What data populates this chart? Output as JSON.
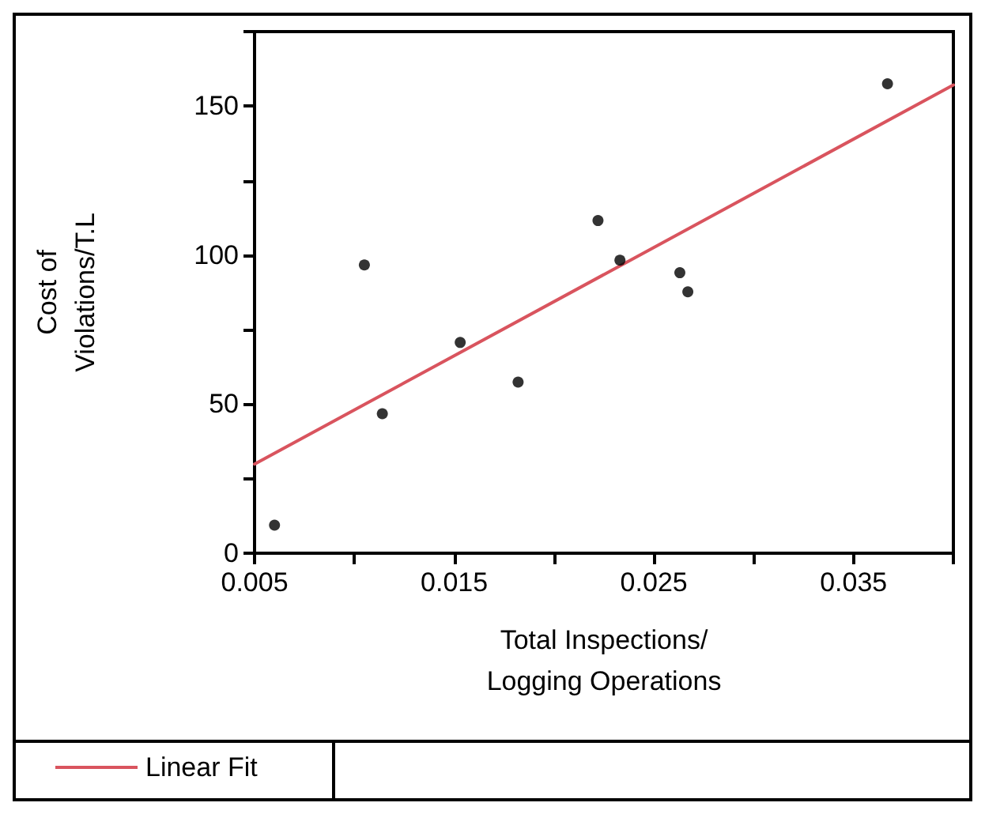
{
  "chart_data": {
    "type": "scatter",
    "xlabel": "Total Inspections/\nLogging Operations",
    "ylabel": "Cost of\nViolations/T.L",
    "x": [
      0.006,
      0.0105,
      0.0114,
      0.0153,
      0.0182,
      0.0222,
      0.0233,
      0.0263,
      0.0267,
      0.0367
    ],
    "series": [
      {
        "color": "#000000",
        "marker": "circle",
        "values": [
          9.4,
          96.7,
          46.8,
          70.7,
          57.4,
          111.6,
          98.3,
          94.1,
          87.7,
          157.5
        ]
      },
      {
        "type": "line",
        "name": "Linear Fit",
        "color": "#d9545e",
        "marker": "none",
        "line_style": "solid",
        "x": [
          0.005,
          0.04
        ],
        "values": [
          29.9,
          157.1
        ]
      }
    ],
    "xlim": [
      0.005,
      0.04
    ],
    "xticks": [
      0.005,
      {
        "value": 0.01,
        "label": null
      },
      0.015,
      {
        "value": 0.02,
        "label": null
      },
      0.025,
      {
        "value": 0.03,
        "label": null
      },
      0.035,
      {
        "value": 0.04,
        "label": null
      }
    ],
    "ylim": [
      0,
      175
    ],
    "yticks": [
      0,
      {
        "value": 25,
        "label": null
      },
      50,
      {
        "value": 75,
        "label": null
      },
      100,
      {
        "value": 125,
        "label": null
      },
      150,
      {
        "value": 175,
        "label": null
      }
    ],
    "grid": false,
    "legend": "bottom left"
  }
}
